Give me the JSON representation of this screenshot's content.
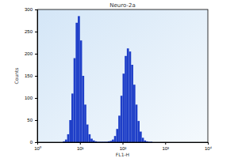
{
  "chart_data": {
    "type": "histogram",
    "title": "Neuro-2a",
    "x_label": "FL1-H",
    "y_label": "Counts",
    "bins": [
      3.98,
      4.47,
      5.01,
      5.62,
      6.31,
      7.08,
      7.94,
      8.91,
      10,
      11.22,
      12.59,
      14.13,
      15.85,
      17.78,
      19.95,
      22.39,
      25.12,
      28.18,
      31.62,
      35.48,
      39.81,
      44.67,
      50.12,
      56.23,
      63.1,
      70.79,
      79.43,
      89.13,
      100,
      112.2,
      125.9,
      141.3,
      158.5,
      177.8,
      199.5,
      223.9,
      251.2,
      281.8,
      316.2,
      354.8,
      398.1,
      446.7,
      501.2
    ],
    "values": [
      2,
      6,
      18,
      50,
      110,
      190,
      270,
      285,
      230,
      150,
      85,
      40,
      18,
      8,
      4,
      2,
      1,
      1,
      1,
      1,
      1,
      2,
      3,
      6,
      14,
      30,
      60,
      105,
      155,
      195,
      212,
      205,
      175,
      130,
      85,
      48,
      24,
      10,
      4,
      2,
      1,
      1
    ],
    "color": "#1f3fc8",
    "log": "x",
    "xlim": [
      1,
      10000
    ],
    "xticks": [
      {
        "value": 1,
        "label": "10⁰"
      },
      {
        "value": 10,
        "label": "10¹"
      },
      {
        "value": 100,
        "label": "10²"
      },
      {
        "value": 1000,
        "label": "10³"
      },
      {
        "value": 10000,
        "label": "10⁴"
      }
    ],
    "ylim": [
      0,
      300
    ],
    "yticks": [
      0,
      50,
      100,
      150,
      200,
      250,
      300
    ]
  }
}
